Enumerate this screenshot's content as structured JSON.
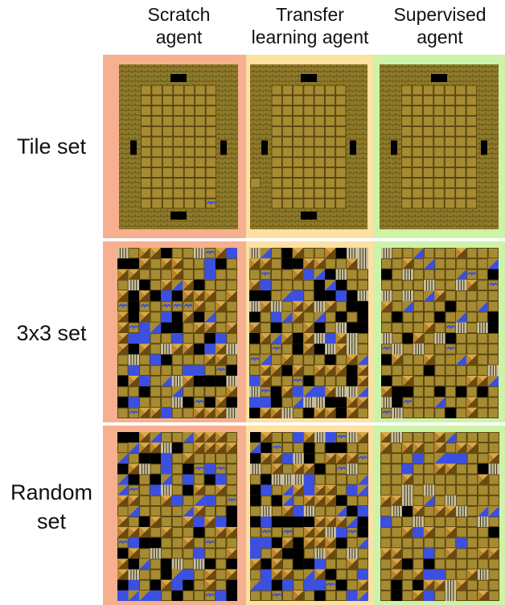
{
  "columns": [
    {
      "label_line1": "Scratch",
      "label_line2": "agent"
    },
    {
      "label_line1": "Transfer",
      "label_line2": "learning agent"
    },
    {
      "label_line1": "Supervised",
      "label_line2": "agent"
    }
  ],
  "rows": [
    {
      "label_line1": "Tile set",
      "label_line2": ""
    },
    {
      "label_line1": "3x3 set",
      "label_line2": ""
    },
    {
      "label_line1": "Random",
      "label_line2": "set"
    }
  ],
  "colors": {
    "scratch_bg": "#f7b08f",
    "transfer_bg": "#fde0a2",
    "supervised_bg": "#cdf3a8",
    "wall": "#8f7b2a",
    "floor": "#a68b33",
    "floor_line": "#4e3e0a",
    "water": "#3b4fe0",
    "void": "#000000",
    "block_light": "#d8a84b",
    "block_dark": "#6a4a10"
  }
}
